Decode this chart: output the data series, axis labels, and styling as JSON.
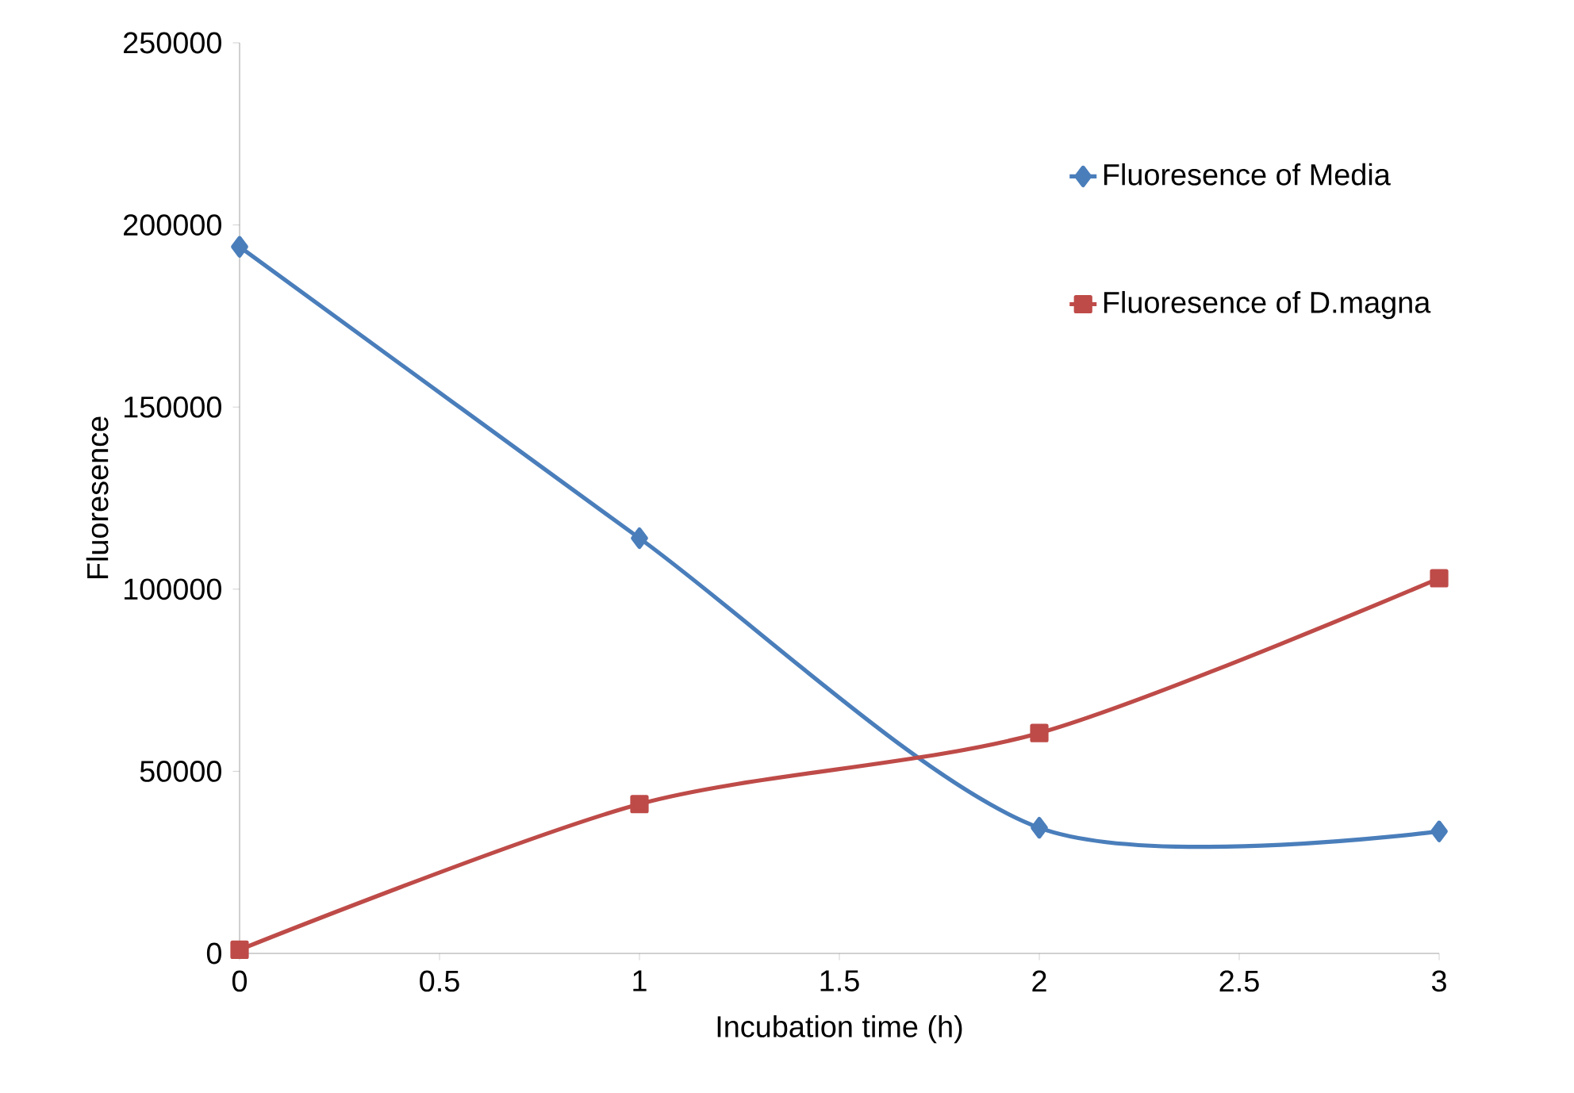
{
  "chart_data": {
    "type": "line",
    "xlabel": "Incubation time (h)",
    "ylabel": "Fluoresence",
    "x": [
      0,
      1,
      2,
      3
    ],
    "series": [
      {
        "name": "Fluoresence of Media",
        "color": "#4a7ebb",
        "marker": "diamond",
        "values": [
          194000,
          114000,
          34500,
          33500
        ]
      },
      {
        "name": "Fluoresence of D.magna",
        "color": "#be4b48",
        "marker": "square",
        "values": [
          1000,
          41000,
          60500,
          103000
        ]
      }
    ],
    "xlim": [
      0,
      3
    ],
    "xticks": [
      0,
      0.5,
      1,
      1.5,
      2,
      2.5,
      3
    ],
    "ylim": [
      0,
      250000
    ],
    "yticks": [
      0,
      50000,
      100000,
      150000,
      200000,
      250000
    ],
    "legend": "top right",
    "line_style": "solid"
  }
}
